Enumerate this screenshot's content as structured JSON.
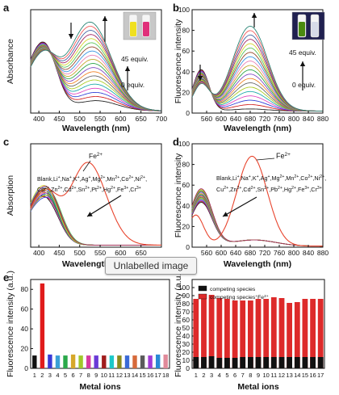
{
  "tooltip": "Unlabelled image",
  "chart_data": [
    {
      "panel": "a",
      "type": "line",
      "xlabel": "Wavelength (nm)",
      "ylabel": "Absorbance",
      "xlim": [
        380,
        700
      ],
      "xticks": [
        400,
        450,
        500,
        550,
        600,
        650,
        700
      ],
      "annotations": [
        "45 equiv.",
        "0 equiv."
      ],
      "family": {
        "count": 20,
        "start": {
          "peak_x": 420,
          "peak_y": 0.5,
          "shoulder_x": 540,
          "shoulder_y": 0.1
        },
        "end": {
          "peak_x": 420,
          "peak_y": 0.36,
          "main_x": 525,
          "main_y": 0.86
        }
      },
      "inset_vials": [
        "#f0e020",
        "#e0307a"
      ]
    },
    {
      "panel": "b",
      "type": "line",
      "xlabel": "Wavelength (nm)",
      "ylabel": "Fluorescence intensity",
      "xlim": [
        520,
        880
      ],
      "ylim": [
        0,
        100
      ],
      "xticks": [
        560,
        600,
        640,
        680,
        720,
        760,
        800,
        840,
        880
      ],
      "yticks": [
        0,
        20,
        40,
        60,
        80,
        100
      ],
      "annotations": [
        "45 equiv.",
        "0 equiv."
      ],
      "family": {
        "count": 20,
        "start": {
          "peak_x": 545,
          "peak_y": 40,
          "main_x": 680,
          "main_y": 2
        },
        "end": {
          "peak_x": 545,
          "peak_y": 25,
          "main_x": 680,
          "main_y": 82
        }
      },
      "inset_vials": [
        "#4a8a10",
        "#d7dbe8"
      ]
    },
    {
      "panel": "c",
      "type": "line",
      "xlabel": "Wavelength (nm)",
      "ylabel": "Absorption",
      "xlim": [
        380,
        700
      ],
      "xticks": [
        400,
        450,
        500,
        550,
        600,
        650,
        70
      ],
      "annotations": [
        "Fe2+",
        "Blank,Li+,Na+,K+,Ag+,Mg2+,Mn2+,Co2+,Ni2+,",
        "Cu2+,Zn2+,Cd2+,Sn2+,Pt2+,Hg2+,Fe3+,Cr3+"
      ],
      "series": [
        {
          "name": "Fe2+",
          "color": "#e8452e",
          "peak_x": 520,
          "peak_y": 0.8,
          "shoulder_x": 420,
          "shoulder_y": 0.42
        },
        {
          "name": "others",
          "count": 17,
          "peak_x": 420,
          "peak_y": 0.5
        }
      ]
    },
    {
      "panel": "d",
      "type": "line",
      "xlabel": "Wavelength (nm)",
      "ylabel": "Fluorescence intensity",
      "xlim": [
        520,
        880
      ],
      "ylim": [
        0,
        100
      ],
      "xticks": [
        560,
        600,
        640,
        680,
        720,
        760,
        800,
        840,
        880
      ],
      "yticks": [
        0,
        20,
        40,
        60,
        80,
        100
      ],
      "annotations": [
        "Fe2+",
        "Blank,Li+,Na+,K+,Ag+,Mg2+,Mn2+,Co2+,Ni2+,",
        "Cu2+,Zn2+,Cd2+,Sn2+,Pb2+,Hg2+,Fe3+,Cr3+"
      ],
      "series": [
        {
          "name": "Fe2+",
          "color": "#e8452e",
          "peak_x": 685,
          "peak_y": 87,
          "start_y": 30
        },
        {
          "name": "others",
          "count": 17,
          "peak_x": 545,
          "peak_y": 50
        }
      ]
    },
    {
      "panel": "e",
      "type": "bar",
      "xlabel": "Metal ions",
      "ylabel": "Fluorescence intensity (a.u.)",
      "ylim": [
        0,
        90
      ],
      "yticks": [
        0,
        20,
        40,
        60,
        80
      ],
      "categories": [
        "1",
        "2",
        "3",
        "4",
        "5",
        "6",
        "7",
        "8",
        "9",
        "10",
        "11",
        "12",
        "13",
        "14",
        "15",
        "16",
        "17",
        "18"
      ],
      "values": [
        13,
        86,
        14,
        13,
        13,
        14,
        13,
        13,
        13,
        13,
        13,
        13,
        13,
        13,
        13,
        13,
        14,
        14
      ],
      "colors": [
        "#111111",
        "#e01c1c",
        "#3a3ad6",
        "#3aa0d6",
        "#2aa84a",
        "#d6a82a",
        "#a0c82a",
        "#d63aa0",
        "#6a3ad6",
        "#a01c1c",
        "#1cc8c8",
        "#8a8a1c",
        "#3a6ad6",
        "#d66a3a",
        "#5a5a5a",
        "#a03ad6",
        "#2a8ad6",
        "#e08a9a"
      ]
    },
    {
      "panel": "e2",
      "type": "bar",
      "xlabel": "Metal ions",
      "ylabel": "Fluorescence intensity (a.u.)",
      "ylim": [
        0,
        110
      ],
      "yticks": [
        0,
        10,
        20,
        30,
        40,
        50,
        60,
        70,
        80,
        90,
        100
      ],
      "categories": [
        "1",
        "2",
        "3",
        "4",
        "5",
        "6",
        "7",
        "8",
        "9",
        "10",
        "11",
        "12",
        "13",
        "14",
        "15",
        "16",
        "17"
      ],
      "series": [
        {
          "name": "competing species",
          "color": "#111111",
          "values": [
            14,
            14,
            15,
            13,
            13,
            13,
            14,
            14,
            14,
            14,
            14,
            14,
            14,
            14,
            14,
            14,
            14
          ]
        },
        {
          "name": "competing species+Fe2+",
          "color": "#dd2a2a",
          "values": [
            86,
            87,
            91,
            87,
            86,
            84,
            84,
            84,
            86,
            86,
            88,
            87,
            81,
            82,
            86,
            86,
            86
          ]
        }
      ]
    }
  ]
}
